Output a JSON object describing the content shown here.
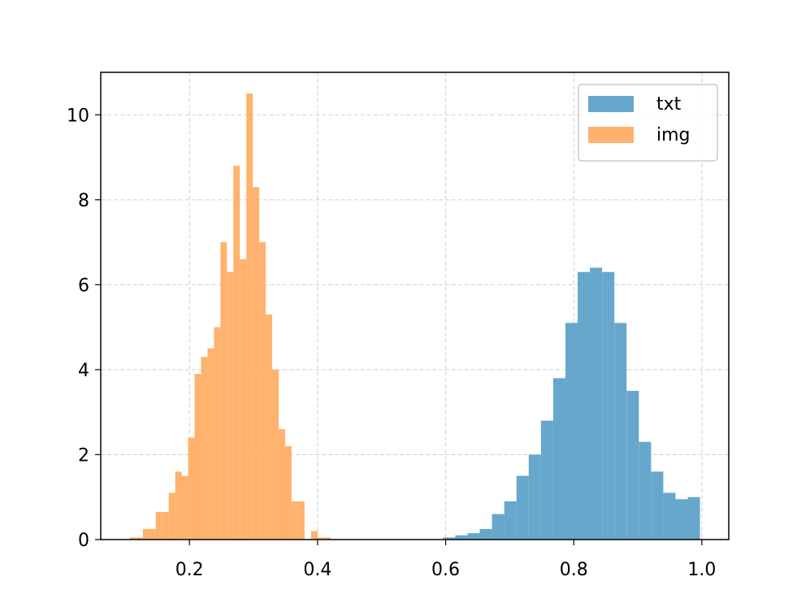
{
  "chart_data": {
    "type": "histogram",
    "series": [
      {
        "name": "txt",
        "color": "#67a7cc",
        "bins": [
          0.596,
          0.6151,
          0.6342,
          0.6533,
          0.6724,
          0.6915,
          0.7106,
          0.7297,
          0.7488,
          0.7679,
          0.787,
          0.8061,
          0.8252,
          0.8443,
          0.8634,
          0.8825,
          0.9016,
          0.9207,
          0.9398,
          0.9589,
          0.978,
          0.9971
        ],
        "values": [
          0.05,
          0.1,
          0.15,
          0.25,
          0.6,
          0.9,
          1.5,
          2.0,
          2.8,
          3.8,
          5.1,
          6.3,
          6.4,
          6.3,
          5.1,
          3.5,
          2.3,
          1.6,
          1.1,
          0.95,
          1.0
        ]
      },
      {
        "name": "img",
        "color": "#ffb26e",
        "bins": [
          0.107,
          0.1171,
          0.1272,
          0.1373,
          0.1474,
          0.1575,
          0.1676,
          0.1777,
          0.1878,
          0.1979,
          0.208,
          0.2181,
          0.2282,
          0.2383,
          0.2484,
          0.2585,
          0.2686,
          0.2787,
          0.2888,
          0.2989,
          0.309,
          0.3191,
          0.3292,
          0.3393,
          0.3494,
          0.3595,
          0.3696,
          0.3797,
          0.3898,
          0.3999,
          0.41,
          0.4201
        ],
        "values": [
          0.05,
          0.05,
          0.25,
          0.25,
          0.65,
          0.65,
          1.1,
          1.6,
          1.5,
          2.4,
          3.9,
          4.3,
          4.5,
          5.0,
          7.0,
          6.3,
          8.8,
          6.6,
          10.5,
          8.3,
          7.0,
          5.3,
          4.0,
          2.6,
          2.2,
          0.9,
          0.9,
          0,
          0.2,
          0.05,
          0.05
        ]
      }
    ],
    "xlim": [
      0.0615,
      1.042
    ],
    "xticks": [
      0.2,
      0.4,
      0.6,
      0.8,
      {
        "value": 1,
        "label": "1.0"
      }
    ],
    "ylim": [
      0,
      11
    ],
    "yticks": [
      0,
      2,
      4,
      6,
      8,
      10
    ],
    "grid": true,
    "legend": "upper right"
  }
}
